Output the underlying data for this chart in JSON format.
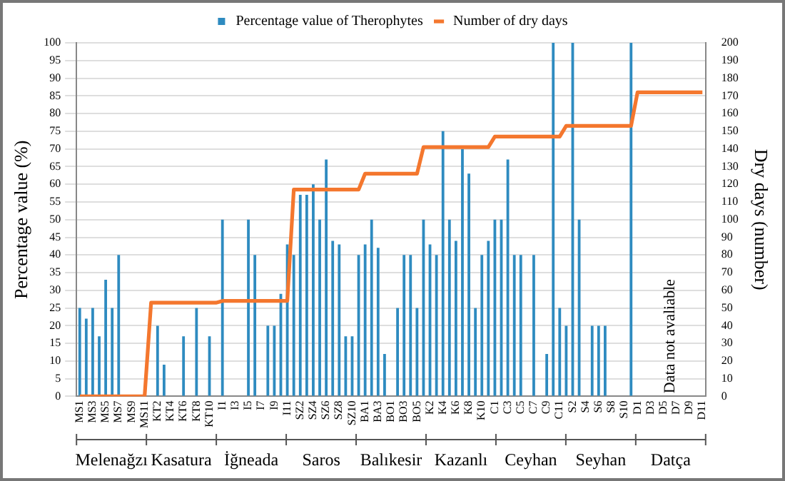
{
  "chart_data": {
    "type": "bar",
    "ylabel": "Percentage value (%)",
    "y2label": "Dry days (number)",
    "categories": [
      "MS1",
      null,
      "MS3",
      null,
      "MS5",
      null,
      "MS7",
      null,
      "MS9",
      null,
      "MS11",
      null,
      "KT2",
      null,
      "KT4",
      null,
      "KT6",
      null,
      "KT8",
      null,
      "KT10",
      null,
      "I1",
      null,
      "I3",
      null,
      "I5",
      null,
      "I7",
      null,
      "I9",
      null,
      "I11",
      null,
      "SZ2",
      null,
      "SZ4",
      null,
      "SZ6",
      null,
      "SZ8",
      null,
      "SZ10",
      null,
      "BA1",
      null,
      "BA3",
      null,
      "BO1",
      null,
      "BO3",
      null,
      "BO5",
      null,
      "K2",
      null,
      "K4",
      null,
      "K6",
      null,
      "K8",
      null,
      "K10",
      null,
      "C1",
      null,
      "C3",
      null,
      "C5",
      null,
      "C7",
      null,
      "C9",
      null,
      "C11",
      null,
      "S2",
      null,
      "S4",
      null,
      "S6",
      null,
      "S8",
      null,
      "S10",
      null,
      "D1",
      null,
      "D3",
      null,
      "D5",
      null,
      "D7",
      null,
      "D9",
      null,
      "D11"
    ],
    "series": [
      {
        "name": "Percentage value of Therophytes",
        "color": "#2e8bc0",
        "values": [
          25,
          22,
          25,
          17,
          33,
          25,
          40,
          0,
          0,
          0,
          0,
          0,
          20,
          9,
          0,
          0,
          17,
          0,
          25,
          0,
          17,
          0,
          50,
          0,
          0,
          0,
          50,
          40,
          0,
          20,
          20,
          29,
          43,
          40,
          57,
          57,
          60,
          50,
          67,
          44,
          43,
          17,
          17,
          40,
          43,
          50,
          42,
          12,
          0,
          25,
          40,
          40,
          25,
          50,
          43,
          40,
          75,
          50,
          44,
          70,
          63,
          25,
          40,
          44,
          50,
          50,
          67,
          40,
          40,
          0,
          40,
          0,
          12,
          100,
          25,
          20,
          100,
          50,
          0,
          20,
          20,
          20,
          0,
          0,
          0,
          100,
          null,
          null,
          null,
          null,
          null,
          null,
          null,
          null,
          null,
          null,
          null
        ]
      },
      {
        "name": "Number of dry days",
        "type": "line",
        "axis": "y2",
        "color": "#f4772e",
        "values": [
          0,
          0,
          0,
          0,
          0,
          0,
          0,
          0,
          0,
          0,
          0,
          53,
          53,
          53,
          53,
          53,
          53,
          53,
          53,
          53,
          53,
          53,
          54,
          54,
          54,
          54,
          54,
          54,
          54,
          54,
          54,
          54,
          54,
          117,
          117,
          117,
          117,
          117,
          117,
          117,
          117,
          117,
          117,
          117,
          126,
          126,
          126,
          126,
          126,
          126,
          126,
          126,
          126,
          141,
          141,
          141,
          141,
          141,
          141,
          141,
          141,
          141,
          141,
          141,
          147,
          147,
          147,
          147,
          147,
          147,
          147,
          147,
          147,
          147,
          147,
          153,
          153,
          153,
          153,
          153,
          153,
          153,
          153,
          153,
          153,
          153,
          172,
          172,
          172,
          172,
          172,
          172,
          172,
          172,
          172,
          172,
          172
        ]
      }
    ],
    "ylim": [
      0,
      100
    ],
    "yticks": [
      0,
      5,
      10,
      15,
      20,
      25,
      30,
      35,
      40,
      45,
      50,
      55,
      60,
      65,
      70,
      75,
      80,
      85,
      90,
      95,
      100
    ],
    "y2lim": [
      0,
      200
    ],
    "y2ticks": [
      0,
      10,
      20,
      30,
      40,
      50,
      60,
      70,
      80,
      90,
      100,
      110,
      120,
      130,
      140,
      150,
      160,
      170,
      180,
      190,
      200
    ],
    "grid": "y",
    "legend": "top",
    "marker": "none",
    "line_style": "solid",
    "annotations": [
      "Data not avaliable",
      "Melenağzı",
      "Kasatura",
      "İğneada",
      "Saros",
      "Balıkesir",
      "Kazanlı",
      "Ceyhan",
      "Seyhan",
      "Datça"
    ]
  }
}
